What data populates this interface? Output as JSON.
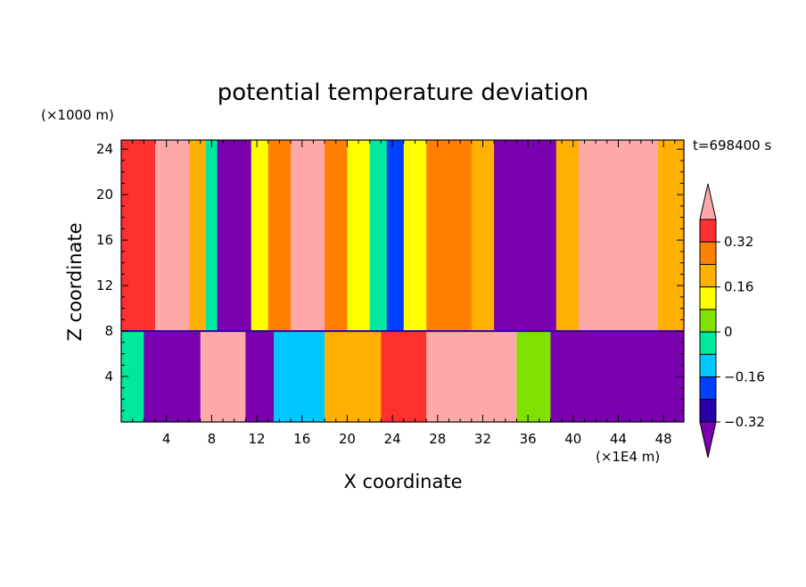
{
  "chart_data": {
    "type": "heatmap",
    "title": "potential temperature deviation",
    "xlabel": "X coordinate",
    "ylabel": "Z coordinate",
    "x_unit": "(×1E4 m)",
    "y_unit": "(×1000 m)",
    "time_label": "t=698400 s",
    "xlim": [
      0,
      49.8
    ],
    "ylim": [
      0,
      24.8
    ],
    "x_ticks": [
      4,
      8,
      12,
      16,
      20,
      24,
      28,
      32,
      36,
      40,
      44,
      48
    ],
    "y_ticks": [
      4,
      8,
      12,
      16,
      20,
      24
    ],
    "colorbar": {
      "levels": [
        -0.4,
        -0.32,
        -0.24,
        -0.16,
        -0.08,
        0,
        0.08,
        0.16,
        0.24,
        0.32,
        0.4
      ],
      "labeled_levels": [
        0.32,
        0.16,
        0,
        -0.16,
        -0.32
      ],
      "labels": [
        "0.32",
        "0.16",
        "0",
        "−0.16",
        "−0.32"
      ],
      "extend": "both",
      "colors": [
        "#7a00b0",
        "#2a00a8",
        "#0040ff",
        "#00c8ff",
        "#00e8a0",
        "#80e000",
        "#ffff00",
        "#ffb000",
        "#ff8000",
        "#ff3030",
        "#ffa8a8"
      ]
    },
    "upper_layer_bands": [
      {
        "x": [
          0,
          3
        ],
        "level": 0.36
      },
      {
        "x": [
          3,
          6
        ],
        "level": 0.4
      },
      {
        "x": [
          6,
          7.5
        ],
        "level": 0.2
      },
      {
        "x": [
          7.5,
          8.5
        ],
        "level": -0.04
      },
      {
        "x": [
          8.5,
          11.5
        ],
        "level": -0.4
      },
      {
        "x": [
          11.5,
          13
        ],
        "level": 0.12
      },
      {
        "x": [
          13,
          15
        ],
        "level": 0.28
      },
      {
        "x": [
          15,
          18
        ],
        "level": 0.4
      },
      {
        "x": [
          18,
          20
        ],
        "level": 0.28
      },
      {
        "x": [
          20,
          22
        ],
        "level": 0.12
      },
      {
        "x": [
          22,
          23.5
        ],
        "level": -0.04
      },
      {
        "x": [
          23.5,
          25
        ],
        "level": -0.2
      },
      {
        "x": [
          25,
          27
        ],
        "level": 0.12
      },
      {
        "x": [
          27,
          31
        ],
        "level": 0.28
      },
      {
        "x": [
          31,
          33
        ],
        "level": 0.2
      },
      {
        "x": [
          33,
          38.5
        ],
        "level": -0.4
      },
      {
        "x": [
          38.5,
          40.5
        ],
        "level": 0.2
      },
      {
        "x": [
          40.5,
          47.5
        ],
        "level": 0.4
      },
      {
        "x": [
          47.5,
          49.8
        ],
        "level": 0.2
      }
    ],
    "lower_layer_bands": [
      {
        "x": [
          0,
          2
        ],
        "level": -0.08
      },
      {
        "x": [
          2,
          7
        ],
        "level": -0.4
      },
      {
        "x": [
          7,
          11
        ],
        "level": 0.4
      },
      {
        "x": [
          11,
          13.5
        ],
        "level": -0.4
      },
      {
        "x": [
          13.5,
          18
        ],
        "level": -0.12
      },
      {
        "x": [
          18,
          23
        ],
        "level": 0.2
      },
      {
        "x": [
          23,
          27
        ],
        "level": 0.36
      },
      {
        "x": [
          27,
          35
        ],
        "level": 0.4
      },
      {
        "x": [
          35,
          38
        ],
        "level": 0.04
      },
      {
        "x": [
          38,
          49.8
        ],
        "level": -0.4
      }
    ],
    "layer_boundary_z": 8
  }
}
